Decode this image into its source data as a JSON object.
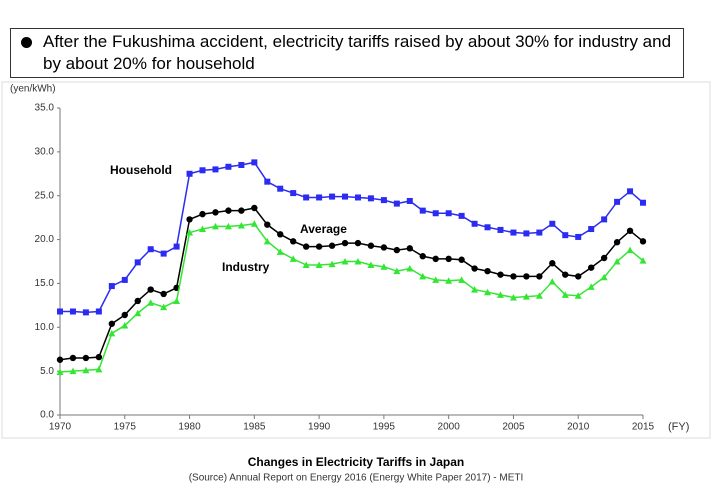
{
  "header": {
    "text": "After the Fukushima accident, electricity tariffs raised by about 30% for industry and by about 20% for household"
  },
  "chart_data": {
    "type": "line",
    "title": "Changes in Electricity Tariffs in Japan",
    "subtitle": "(Source) Annual Report on Energy 2016 (Energy White Paper 2017) - METI",
    "y_label": "(yen/kWh)",
    "x_label": "(FY)",
    "x": [
      1970,
      1971,
      1972,
      1973,
      1974,
      1975,
      1976,
      1977,
      1978,
      1979,
      1980,
      1981,
      1982,
      1983,
      1984,
      1985,
      1986,
      1987,
      1988,
      1989,
      1990,
      1991,
      1992,
      1993,
      1994,
      1995,
      1996,
      1997,
      1998,
      1999,
      2000,
      2001,
      2002,
      2003,
      2004,
      2005,
      2006,
      2007,
      2008,
      2009,
      2010,
      2011,
      2012,
      2013,
      2014,
      2015
    ],
    "series": [
      {
        "name": "Household",
        "color": "#2b2bf2",
        "marker": "square",
        "values": [
          11.8,
          11.8,
          11.7,
          11.8,
          14.7,
          15.4,
          17.4,
          18.9,
          18.4,
          19.2,
          27.5,
          27.9,
          28.0,
          28.3,
          28.5,
          28.8,
          26.6,
          25.8,
          25.3,
          24.8,
          24.8,
          24.9,
          24.9,
          24.8,
          24.7,
          24.5,
          24.1,
          24.4,
          23.3,
          23.0,
          23.0,
          22.7,
          21.8,
          21.4,
          21.1,
          20.8,
          20.7,
          20.8,
          21.8,
          20.5,
          20.3,
          21.2,
          22.3,
          24.3,
          25.5,
          24.2
        ]
      },
      {
        "name": "Average",
        "color": "#000000",
        "marker": "circle",
        "values": [
          6.3,
          6.5,
          6.5,
          6.6,
          10.4,
          11.4,
          13.0,
          14.3,
          13.8,
          14.5,
          22.3,
          22.9,
          23.1,
          23.3,
          23.3,
          23.6,
          21.7,
          20.6,
          19.8,
          19.2,
          19.2,
          19.3,
          19.6,
          19.6,
          19.3,
          19.1,
          18.8,
          19.0,
          18.1,
          17.8,
          17.8,
          17.7,
          16.7,
          16.4,
          16.0,
          15.8,
          15.8,
          15.8,
          17.3,
          16.0,
          15.8,
          16.8,
          17.9,
          19.7,
          21.0,
          19.8
        ]
      },
      {
        "name": "Industry",
        "color": "#33e633",
        "marker": "triangle",
        "values": [
          4.9,
          5.0,
          5.1,
          5.2,
          9.3,
          10.2,
          11.6,
          12.8,
          12.3,
          13.0,
          20.8,
          21.2,
          21.5,
          21.5,
          21.6,
          21.8,
          19.8,
          18.6,
          17.8,
          17.1,
          17.1,
          17.2,
          17.5,
          17.5,
          17.1,
          16.9,
          16.4,
          16.7,
          15.8,
          15.4,
          15.3,
          15.4,
          14.3,
          14.0,
          13.7,
          13.4,
          13.5,
          13.6,
          15.2,
          13.7,
          13.6,
          14.6,
          15.7,
          17.5,
          18.8,
          17.6
        ]
      }
    ],
    "xlim": [
      1970,
      2015
    ],
    "xticks": [
      1970,
      1975,
      1980,
      1985,
      1990,
      1995,
      2000,
      2005,
      2010,
      2015
    ],
    "ylim": [
      0,
      35
    ],
    "yticks": [
      {
        "value": 0,
        "label": "0.0"
      },
      {
        "value": 5,
        "label": "5.0"
      },
      {
        "value": 10,
        "label": "10.0"
      },
      {
        "value": 15,
        "label": "15.0"
      },
      {
        "value": 20,
        "label": "20.0"
      },
      {
        "value": 25,
        "label": "25.0"
      },
      {
        "value": 30,
        "label": "30.0"
      },
      {
        "value": 35,
        "label": "35.0"
      }
    ]
  }
}
